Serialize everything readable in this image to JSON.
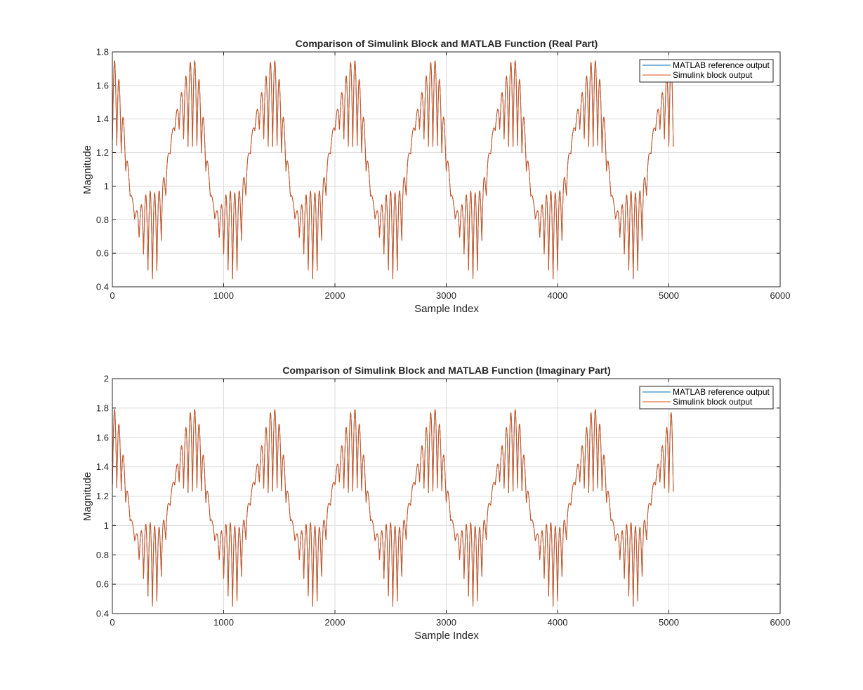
{
  "colors": {
    "reference": "#0072BD",
    "simulink": "#D95319",
    "grid": "#DCDCDC",
    "axis": "#262626"
  },
  "chart_data": [
    {
      "type": "line",
      "title": "Comparison of Simulink Block and MATLAB Function (Real Part)",
      "xlabel": "Sample Index",
      "ylabel": "Magnitude",
      "xlim": [
        0,
        6000
      ],
      "ylim": [
        0.4,
        1.8
      ],
      "xticks": [
        "0",
        "1000",
        "2000",
        "3000",
        "4000",
        "5000",
        "6000"
      ],
      "yticks": [
        "0.4",
        "0.6",
        "0.8",
        "1",
        "1.2",
        "1.4",
        "1.6",
        "1.8"
      ],
      "grid": true,
      "legend_position": "top-right",
      "x_range": [
        1,
        5040
      ],
      "period": 720,
      "series": [
        {
          "name": "MATLAB reference output",
          "color": "#0072BD"
        },
        {
          "name": "Simulink block output",
          "color": "#D95319"
        }
      ],
      "model": {
        "offset": 1.1,
        "slow_amp": 0.42,
        "slow_phase": 0.35,
        "fast_harmonic": 18,
        "fast_amp": 0.26,
        "mid_harmonic": 3,
        "mid_amp": 0.06
      }
    },
    {
      "type": "line",
      "title": "Comparison of Simulink Block and MATLAB Function (Imaginary Part)",
      "xlabel": "Sample Index",
      "ylabel": "Magnitude",
      "xlim": [
        0,
        6000
      ],
      "ylim": [
        0.4,
        2
      ],
      "xticks": [
        "0",
        "1000",
        "2000",
        "3000",
        "4000",
        "5000",
        "6000"
      ],
      "yticks": [
        "0.4",
        "0.6",
        "0.8",
        "1",
        "1.2",
        "1.4",
        "1.6",
        "1.8",
        "2"
      ],
      "grid": true,
      "legend_position": "top-right",
      "x_range": [
        1,
        5040
      ],
      "period": 720,
      "series": [
        {
          "name": "MATLAB reference output",
          "color": "#0072BD"
        },
        {
          "name": "Simulink block output",
          "color": "#D95319"
        }
      ],
      "model": {
        "offset": 1.12,
        "slow_amp": 0.4,
        "slow_phase": 0.2,
        "fast_harmonic": 18,
        "fast_amp": 0.28,
        "mid_harmonic": 3,
        "mid_amp": 0.05
      }
    }
  ]
}
